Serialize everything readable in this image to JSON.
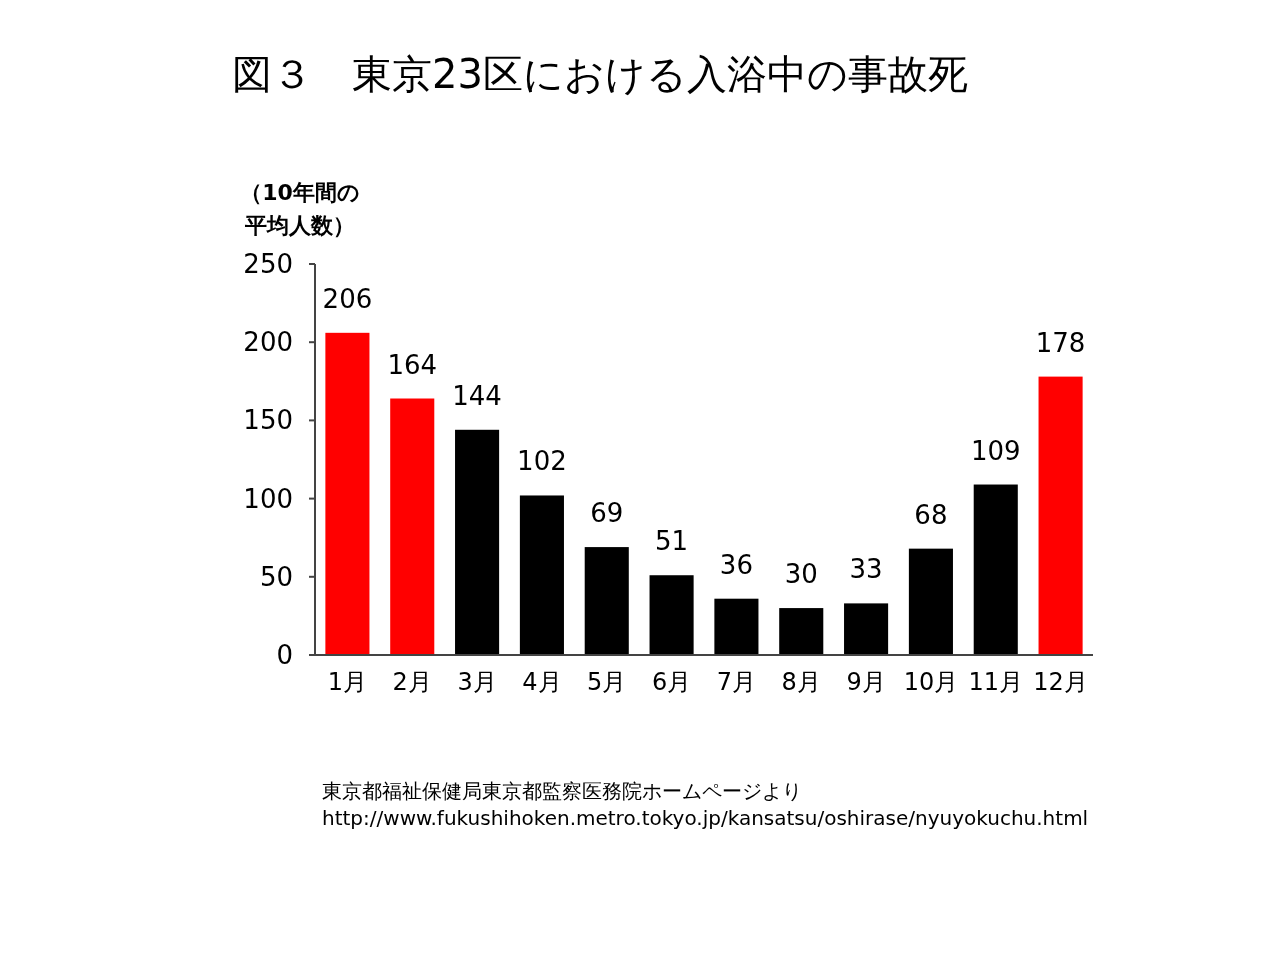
{
  "chart_data": {
    "type": "bar",
    "title": "図３　東京23区における入浴中の事故死",
    "ylabel": "（10年間の平均人数）",
    "categories": [
      "1月",
      "2月",
      "3月",
      "4月",
      "5月",
      "6月",
      "7月",
      "8月",
      "9月",
      "10月",
      "11月",
      "12月"
    ],
    "values": [
      206,
      164,
      144,
      102,
      69,
      51,
      36,
      30,
      33,
      68,
      109,
      178
    ],
    "colors": [
      "#ff0000",
      "#ff0000",
      "#000000",
      "#000000",
      "#000000",
      "#000000",
      "#000000",
      "#000000",
      "#000000",
      "#000000",
      "#000000",
      "#ff0000"
    ],
    "ylim": [
      0,
      250
    ],
    "yticks": [
      0,
      50,
      100,
      150,
      200,
      250
    ],
    "data_labels": true,
    "grid": false,
    "annotations": [
      "東京都福祉保健局東京都監察医務院ホームページより",
      "http://www.fukushihoken.metro.tokyo.jp/kansatsu/oshirase/nyuyokuchu.html"
    ]
  }
}
